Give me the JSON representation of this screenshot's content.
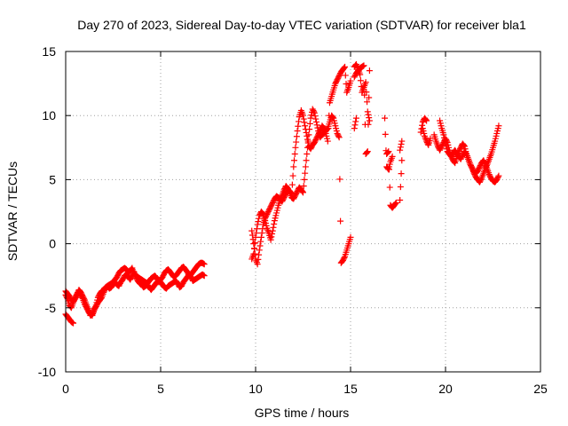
{
  "chart_data": {
    "type": "scatter",
    "title": "Day 270 of 2023, Sidereal Day-to-day VTEC variation (SDTVAR) for receiver bla1",
    "xlabel": "GPS time / hours",
    "ylabel": "SDTVAR / TECUs",
    "xlim": [
      0,
      25
    ],
    "ylim": [
      -10,
      15
    ],
    "xticks": [
      0,
      5,
      10,
      15,
      20,
      25
    ],
    "yticks": [
      -10,
      -5,
      0,
      5,
      10,
      15
    ],
    "grid": true,
    "marker": "+",
    "series": [
      {
        "name": "SDTVAR",
        "color": "#ff0000",
        "x": [
          0.0,
          0.1,
          0.2,
          0.3,
          0.4,
          0.5,
          0.6,
          0.7,
          0.8,
          0.9,
          1.0,
          1.1,
          1.2,
          1.3,
          1.4,
          1.5,
          1.6,
          1.7,
          1.8,
          1.9,
          2.0,
          2.1,
          2.2,
          2.3,
          2.4,
          2.5,
          2.6,
          2.7,
          2.8,
          2.9,
          3.0,
          3.1,
          3.2,
          3.3,
          3.4,
          3.5,
          3.6,
          3.7,
          3.8,
          3.9,
          4.0,
          4.1,
          4.2,
          4.3,
          4.4,
          4.5,
          4.6,
          4.7,
          4.8,
          4.9,
          5.0,
          5.1,
          5.2,
          5.3,
          5.4,
          5.5,
          5.6,
          5.7,
          5.8,
          5.9,
          6.0,
          6.1,
          6.2,
          6.3,
          6.4,
          6.5,
          6.6,
          6.7,
          6.8,
          6.9,
          7.0,
          7.1,
          7.2,
          7.3,
          0.0,
          0.1,
          0.2,
          0.3,
          0.4,
          0.5,
          0.6,
          0.7,
          0.8,
          0.9,
          1.0,
          1.1,
          1.2,
          1.3,
          1.4,
          1.5,
          1.6,
          1.7,
          1.8,
          1.9,
          2.0,
          2.1,
          2.2,
          2.3,
          2.4,
          2.5,
          2.6,
          2.7,
          2.8,
          2.9,
          3.0,
          3.1,
          3.2,
          3.3,
          3.4,
          3.5,
          3.6,
          3.7,
          3.8,
          3.9,
          4.0,
          4.1,
          4.2,
          4.3,
          4.4,
          4.5,
          4.6,
          4.7,
          4.8,
          4.9,
          5.0,
          5.1,
          5.2,
          5.3,
          5.4,
          5.5,
          5.6,
          5.7,
          5.8,
          5.9,
          6.0,
          6.1,
          6.2,
          6.3,
          6.4,
          6.5,
          6.6,
          6.7,
          6.8,
          6.9,
          7.0,
          7.1,
          7.2,
          7.3,
          0.0,
          0.1,
          0.2,
          0.3,
          0.4,
          9.8,
          9.9,
          10.0,
          10.1,
          10.2,
          10.3,
          10.4,
          10.5,
          10.6,
          10.7,
          10.8,
          10.9,
          11.0,
          11.1,
          11.2,
          11.3,
          11.4,
          11.5,
          11.6,
          11.7,
          11.8,
          11.9,
          12.0,
          12.1,
          12.2,
          12.3,
          12.4,
          12.5,
          12.6,
          12.7,
          12.8,
          12.9,
          13.0,
          13.1,
          13.2,
          13.3,
          13.4,
          13.5,
          13.6,
          13.7,
          13.8,
          13.9,
          14.0,
          14.1,
          14.2,
          14.3,
          14.4,
          14.5,
          14.6,
          14.7,
          14.8,
          14.9,
          15.0,
          9.8,
          9.9,
          10.0,
          10.1,
          10.2,
          10.3,
          10.4,
          10.5,
          10.6,
          10.7,
          10.8,
          10.9,
          11.0,
          11.1,
          11.2,
          11.3,
          11.4,
          11.5,
          11.6,
          11.7,
          11.8,
          11.9,
          12.0,
          12.1,
          12.2,
          12.3,
          12.4,
          12.5,
          12.6,
          12.7,
          12.8,
          12.9,
          13.0,
          13.1,
          13.2,
          13.3,
          13.4,
          13.5,
          13.6,
          13.7,
          13.8,
          13.9,
          14.0,
          14.1,
          14.2,
          14.3,
          14.4,
          14.5,
          14.6,
          14.7,
          14.8,
          14.9,
          15.0,
          15.2,
          15.3,
          15.4,
          15.5,
          15.6,
          15.7,
          15.8,
          15.9,
          16.0,
          15.2,
          15.3,
          15.4,
          15.5,
          15.6,
          15.7,
          15.8,
          15.9,
          16.0,
          15.2,
          15.3,
          16.8,
          16.9,
          17.0,
          17.1,
          17.2,
          16.9,
          17.0,
          17.1,
          17.2,
          17.3,
          17.4,
          17.6,
          17.7,
          17.6,
          17.7,
          18.7,
          18.8,
          18.9,
          19.0,
          18.8,
          18.9,
          19.0,
          19.1,
          19.2,
          19.4,
          19.5,
          19.6,
          19.7,
          19.8,
          19.9,
          20.0,
          20.1,
          20.2,
          20.3,
          20.4,
          20.5,
          20.6,
          20.7,
          20.8,
          20.9,
          21.0,
          21.1,
          21.2,
          21.3,
          21.4,
          21.5,
          21.6,
          21.7,
          21.8,
          21.9,
          22.0,
          22.1,
          22.2,
          22.3,
          22.4,
          22.5,
          22.6,
          22.7,
          22.8,
          19.7,
          19.8,
          19.9,
          20.0,
          20.1,
          20.2,
          20.3,
          20.4,
          20.5,
          20.6,
          20.7,
          20.8,
          20.9,
          21.0,
          21.1,
          21.2,
          21.3,
          21.4,
          21.5,
          21.6,
          21.7,
          21.8,
          21.9,
          22.0,
          22.1,
          22.2,
          22.3,
          22.4,
          22.5,
          22.6,
          22.7,
          22.8
        ],
        "y": [
          -4.0,
          -4.3,
          -4.8,
          -5.0,
          -4.6,
          -4.2,
          -3.9,
          -3.6,
          -3.8,
          -4.1,
          -4.4,
          -4.8,
          -5.2,
          -5.6,
          -5.5,
          -5.1,
          -4.9,
          -4.6,
          -4.4,
          -4.2,
          -3.8,
          -3.5,
          -3.3,
          -3.2,
          -3.1,
          -3.0,
          -2.8,
          -2.6,
          -2.3,
          -2.1,
          -2.0,
          -1.9,
          -2.0,
          -2.2,
          -2.1,
          -1.9,
          -2.3,
          -2.5,
          -2.6,
          -2.7,
          -2.8,
          -2.9,
          -3.0,
          -3.1,
          -2.9,
          -2.7,
          -2.6,
          -2.5,
          -2.7,
          -3.0,
          -2.8,
          -2.6,
          -2.3,
          -2.1,
          -2.0,
          -2.2,
          -2.4,
          -2.6,
          -2.5,
          -2.3,
          -2.1,
          -1.9,
          -1.8,
          -2.0,
          -2.2,
          -2.5,
          -2.4,
          -2.2,
          -2.0,
          -1.8,
          -1.6,
          -1.5,
          -1.5,
          -1.6,
          -3.7,
          -3.9,
          -4.1,
          -4.4,
          -4.5,
          -4.3,
          -4.0,
          -3.8,
          -4.0,
          -4.3,
          -4.7,
          -5.0,
          -5.3,
          -5.5,
          -5.6,
          -5.2,
          -4.8,
          -4.2,
          -3.9,
          -3.7,
          -3.6,
          -3.4,
          -3.3,
          -3.5,
          -3.4,
          -3.2,
          -3.0,
          -3.2,
          -3.3,
          -3.0,
          -2.8,
          -2.5,
          -2.4,
          -2.6,
          -2.8,
          -2.5,
          -2.2,
          -2.6,
          -2.9,
          -3.1,
          -3.2,
          -3.4,
          -3.3,
          -3.2,
          -3.4,
          -3.6,
          -3.4,
          -3.2,
          -3.0,
          -2.9,
          -3.0,
          -3.2,
          -3.4,
          -3.5,
          -3.3,
          -3.2,
          -3.1,
          -3.0,
          -2.9,
          -3.1,
          -3.4,
          -3.3,
          -3.0,
          -2.8,
          -2.6,
          -2.4,
          -2.6,
          -2.9,
          -2.8,
          -2.7,
          -2.6,
          -2.5,
          -2.4,
          -2.5,
          -5.5,
          -5.7,
          -5.9,
          -6.1,
          -6.2,
          -1.2,
          -0.8,
          0.5,
          1.5,
          2.2,
          2.5,
          2.3,
          1.8,
          1.2,
          0.8,
          0.3,
          1.0,
          1.8,
          2.4,
          3.0,
          3.5,
          3.8,
          4.2,
          4.5,
          4.3,
          4.0,
          3.6,
          3.5,
          3.8,
          4.1,
          4.4,
          4.2,
          4.0,
          5.5,
          7.0,
          8.5,
          9.8,
          10.5,
          10.2,
          9.5,
          8.8,
          8.3,
          8.5,
          8.7,
          8.8,
          9.0,
          9.5,
          10.0,
          9.8,
          9.2,
          8.6,
          8.3,
          -1.5,
          -1.3,
          -1.0,
          -0.5,
          0.0,
          0.5,
          1.0,
          0.0,
          -1.2,
          -1.6,
          -0.5,
          0.5,
          1.5,
          2.0,
          2.3,
          2.6,
          2.9,
          3.2,
          3.5,
          3.7,
          3.6,
          3.4,
          3.3,
          3.6,
          3.9,
          4.2,
          4.1,
          3.9,
          6.0,
          7.5,
          8.8,
          9.9,
          10.4,
          10.0,
          9.2,
          8.4,
          7.6,
          7.4,
          7.7,
          7.9,
          8.2,
          8.5,
          8.8,
          9.2,
          9.0,
          8.6,
          8.0,
          11.0,
          11.5,
          12.0,
          12.5,
          12.8,
          13.1,
          13.4,
          13.6,
          13.8,
          11.8,
          12.2,
          12.7,
          13.0,
          13.3,
          13.5,
          13.7,
          13.8,
          13.9,
          7.0,
          7.2,
          13.5,
          13.8,
          14.0,
          13.6,
          13.2,
          11.8,
          12.2,
          12.6,
          10.3,
          9.6,
          9.0,
          9.8,
          9.8,
          6.0,
          5.8,
          6.4,
          6.8,
          7.0,
          7.2,
          3.0,
          2.8,
          3.0,
          3.2,
          3.4,
          6.5,
          7.3,
          8.0,
          8.7,
          9.5,
          9.8,
          9.6,
          9.0,
          8.4,
          8.0,
          7.7,
          8.2,
          8.5,
          8.0,
          7.6,
          7.3,
          7.6,
          7.9,
          8.2,
          7.9,
          7.3,
          6.8,
          6.5,
          6.3,
          6.8,
          7.2,
          7.5,
          7.8,
          7.6,
          7.0,
          6.6,
          6.2,
          5.9,
          5.5,
          5.2,
          5.0,
          4.8,
          5.1,
          5.5,
          5.9,
          6.2,
          6.6,
          7.0,
          7.5,
          8.0,
          8.6,
          9.2,
          9.6,
          9.0,
          8.5,
          7.8,
          7.2,
          7.0,
          6.8,
          7.1,
          7.3,
          7.0,
          6.8,
          6.6,
          6.9,
          7.2,
          7.0,
          6.6,
          6.2,
          5.9,
          5.6,
          5.5,
          5.7,
          6.0,
          6.3,
          6.5,
          6.2,
          5.8,
          5.4,
          5.1,
          4.9,
          4.8,
          5.0,
          5.3
        ]
      }
    ]
  }
}
